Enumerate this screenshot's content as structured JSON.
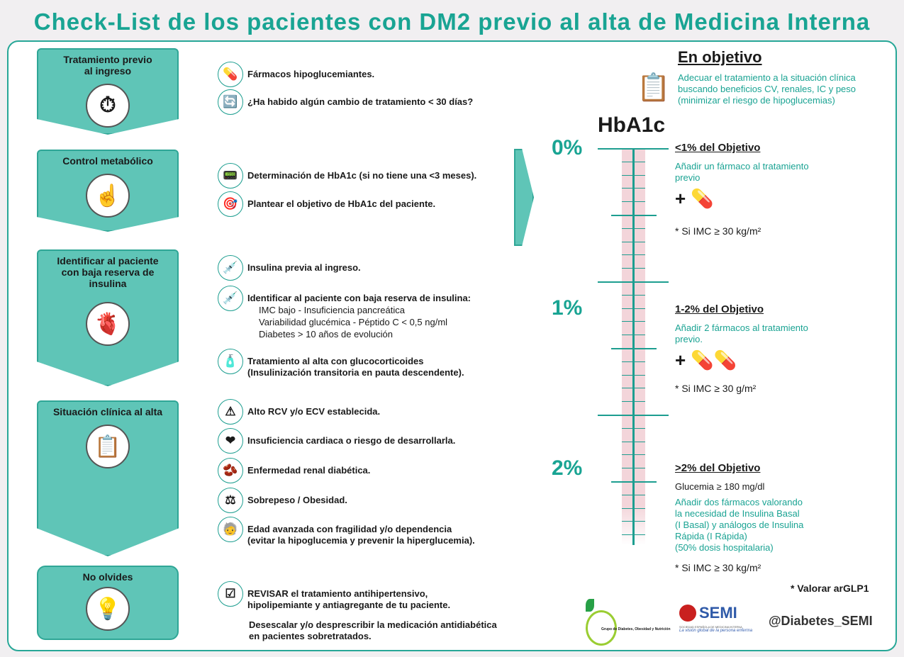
{
  "title": "Check-List de los pacientes con DM2 previo al alta de Medicina Interna",
  "steps": [
    {
      "label": "Tratamiento previo al ingreso",
      "icon": "clock-icon"
    },
    {
      "label": "Control metabólico",
      "icon": "glucometer-hand-icon"
    },
    {
      "label": "Identificar al paciente con baja reserva de insulina",
      "icon": "pancreas-icon"
    },
    {
      "label": "Situación clínica al alta",
      "icon": "clipboard-icon"
    },
    {
      "label": "No olvides",
      "icon": "lightbulb-icon"
    }
  ],
  "items": [
    {
      "text": "Fármacos hipoglucemiantes.",
      "icon": "pills-icon"
    },
    {
      "text": "¿Ha habido algún cambio de tratamiento < 30 días?",
      "icon": "medication-change-icon"
    },
    {
      "text": "Determinación de HbA1c (si no tiene una <3 meses).",
      "icon": "glucometer-icon"
    },
    {
      "text": "Plantear el objetivo de HbA1c del paciente.",
      "icon": "target-icon"
    },
    {
      "text": "Insulina previa al ingreso.",
      "icon": "syringe-icon"
    },
    {
      "text": "Identificar al paciente con baja reserva de insulina:",
      "icon": "syringes-icon",
      "sub": [
        "IMC bajo - Insuficiencia pancreática",
        "Variabilidad glucémica - Péptido C < 0,5 ng/ml",
        "Diabetes > 10 años de evolución"
      ]
    },
    {
      "text": "Tratamiento al alta con glucocorticoides",
      "text2": "(Insulinización transitoria en pauta descendente).",
      "icon": "medicine-bottle-icon"
    },
    {
      "text": "Alto RCV y/o ECV establecida.",
      "icon": "warning-icon"
    },
    {
      "text": "Insuficiencia cardiaca o riesgo de desarrollarla.",
      "icon": "heart-icon"
    },
    {
      "text": "Enfermedad renal diabética.",
      "icon": "kidney-icon"
    },
    {
      "text": "Sobrepeso / Obesidad.",
      "icon": "scale-icon"
    },
    {
      "text": "Edad avanzada con fragilidad y/o dependencia",
      "text2": "(evitar la hipoglucemia y prevenir la hiperglucemia).",
      "icon": "elderly-icon"
    },
    {
      "text": "REVISAR el tratamiento antihipertensivo,",
      "text2": "hipolipemiante y antiagregante de tu paciente.",
      "icon": "checklist-icon"
    }
  ],
  "deescalate": [
    "Desescalar y/o desprescribir la medicación antidiabética",
    "en pacientes sobretratados."
  ],
  "objective": {
    "title": "En objetivo",
    "lines": [
      "Adecuar el tratamiento a la situación clínica",
      "buscando beneficios CV, renales, IC y peso",
      "(minimizar el riesgo de hipoglucemias)"
    ]
  },
  "scale": {
    "title": "HbA1c",
    "levels": [
      "0%",
      "1%",
      "2%"
    ]
  },
  "levels": [
    {
      "title": "<1% del Objetivo",
      "text": [
        "Añadir un fármaco al tratamiento",
        "previo"
      ],
      "note": "* Si IMC ≥ 30 kg/m²"
    },
    {
      "title": "1-2% del Objetivo",
      "text": [
        "Añadir 2 fármacos al tratamiento",
        "previo."
      ],
      "note": "* Si IMC ≥ 30 g/m²"
    },
    {
      "title": ">2% del Objetivo",
      "pre": "Glucemia ≥ 180 mg/dl",
      "text": [
        "Añadir dos fármacos valorando",
        "la necesidad de Insulina Basal",
        "(I Basal) y análogos de Insulina",
        "Rápida (I Rápida)",
        "(50% dosis hospitalaria)"
      ],
      "note": "* Si IMC ≥ 30 kg/m²"
    }
  ],
  "footer": {
    "glp1": "* Valorar arGLP1",
    "handle": "@Diabetes_SEMI",
    "logo1": "Grupo de Diabetes, Obesidad y Nutrición",
    "logo2": "SEMI",
    "logo2_sub": "SOCIEDAD ESPAÑOLA DE MEDICINA INTERNA",
    "logo2_tag": "La visión global de la persona enferma"
  },
  "colors": {
    "teal": "#19a493",
    "box": "#5fc5b7",
    "pink": "#f3d5da"
  }
}
